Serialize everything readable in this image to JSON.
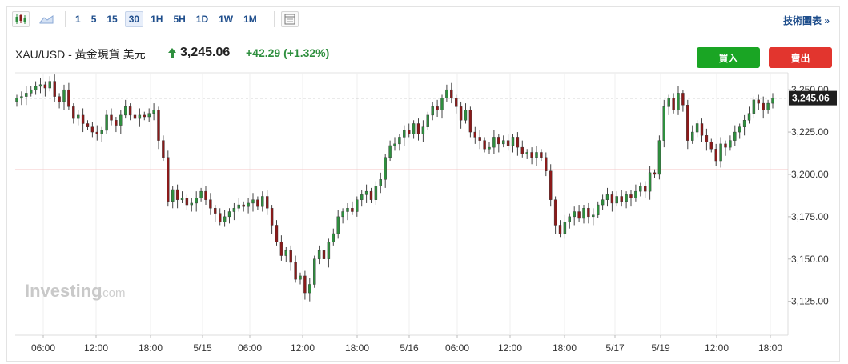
{
  "toolbar": {
    "timeframes": [
      "1",
      "5",
      "15",
      "30",
      "1H",
      "5H",
      "1D",
      "1W",
      "1M"
    ],
    "active_timeframe": "30",
    "tech_chart_label": "技術圖表 »",
    "icons": [
      "candlestick-icon",
      "area-chart-icon",
      "chart-settings-icon"
    ]
  },
  "header": {
    "title": "XAU/USD - 黃金現貨 美元",
    "price": "3,245.06",
    "change": "+42.29 (+1.32%)",
    "direction": "up",
    "buy_label": "買入",
    "sell_label": "賣出"
  },
  "watermark": {
    "brand": "Investing",
    "suffix": ".com"
  },
  "colors": {
    "up": "#2e8f3e",
    "down": "#8b1a1a",
    "buy": "#1aa524",
    "sell": "#e2352e",
    "price_tag": "#1f1f1f",
    "reference_line": "#f3b3b3"
  },
  "chart_data": {
    "type": "candlestick",
    "title": "",
    "xlabel": "",
    "ylabel": "",
    "ylim": [
      3105,
      3260
    ],
    "y_ticks": [
      "3,250.00",
      "3,225.00",
      "3,200.00",
      "3,175.00",
      "3,150.00",
      "3,125.00"
    ],
    "y_tick_values": [
      3250,
      3225,
      3200,
      3175,
      3150,
      3125
    ],
    "x_ticks": [
      "06:00",
      "12:00",
      "18:00",
      "5/15",
      "06:00",
      "12:00",
      "18:00",
      "5/16",
      "06:00",
      "12:00",
      "18:00",
      "5/17",
      "5/19",
      "12:00",
      "18:00"
    ],
    "current_price": 3245.06,
    "current_price_label": "3,245.06",
    "reference_price": 3202.77,
    "grid": "vertical",
    "series": [
      {
        "close": [
          3245,
          3246,
          3248,
          3250,
          3252,
          3253,
          3251,
          3255,
          3246,
          3243,
          3250,
          3240,
          3233,
          3235,
          3230,
          3228,
          3225,
          3224,
          3226,
          3235,
          3232,
          3229,
          3235,
          3240,
          3235,
          3233,
          3235,
          3234,
          3236,
          3238,
          3220,
          3210,
          3184,
          3191,
          3185,
          3186,
          3182,
          3183,
          3186,
          3190,
          3185,
          3180,
          3177,
          3172,
          3175,
          3178,
          3180,
          3182,
          3181,
          3183,
          3185,
          3181,
          3187,
          3180,
          3170,
          3160,
          3152,
          3155,
          3148,
          3138,
          3140,
          3130,
          3135,
          3150,
          3155,
          3150,
          3160,
          3165,
          3175,
          3178,
          3180,
          3178,
          3185,
          3188,
          3190,
          3185,
          3193,
          3197,
          3210,
          3217,
          3218,
          3222,
          3226,
          3224,
          3230,
          3224,
          3228,
          3235,
          3240,
          3238,
          3245,
          3250,
          3245,
          3240,
          3232,
          3238,
          3225,
          3222,
          3220,
          3215,
          3216,
          3222,
          3218,
          3220,
          3217,
          3222,
          3216,
          3212,
          3213,
          3210,
          3213,
          3210,
          3202,
          3185,
          3170,
          3165,
          3172,
          3175,
          3178,
          3174,
          3180,
          3175,
          3176,
          3182,
          3185,
          3188,
          3183,
          3187,
          3184,
          3188,
          3186,
          3190,
          3193,
          3190,
          3201,
          3200,
          3220,
          3240,
          3245,
          3238,
          3248,
          3241,
          3220,
          3225,
          3230,
          3223,
          3219,
          3215,
          3208,
          3218,
          3216,
          3220,
          3225,
          3228,
          3232,
          3236,
          3244,
          3242,
          3238,
          3242,
          3245
        ],
        "open": [
          3243,
          3245,
          3246,
          3248,
          3250,
          3252,
          3253,
          3251,
          3255,
          3246,
          3243,
          3250,
          3240,
          3233,
          3235,
          3230,
          3228,
          3225,
          3224,
          3226,
          3235,
          3232,
          3229,
          3235,
          3240,
          3235,
          3233,
          3235,
          3234,
          3236,
          3238,
          3220,
          3210,
          3184,
          3191,
          3185,
          3186,
          3182,
          3183,
          3186,
          3190,
          3185,
          3180,
          3177,
          3172,
          3175,
          3178,
          3180,
          3182,
          3181,
          3183,
          3185,
          3181,
          3187,
          3180,
          3170,
          3160,
          3152,
          3155,
          3148,
          3138,
          3140,
          3130,
          3135,
          3150,
          3155,
          3150,
          3160,
          3165,
          3175,
          3178,
          3180,
          3178,
          3185,
          3188,
          3190,
          3185,
          3193,
          3197,
          3210,
          3217,
          3218,
          3222,
          3226,
          3224,
          3230,
          3224,
          3228,
          3235,
          3240,
          3238,
          3245,
          3250,
          3245,
          3240,
          3232,
          3238,
          3225,
          3222,
          3220,
          3215,
          3216,
          3222,
          3218,
          3220,
          3217,
          3222,
          3216,
          3212,
          3213,
          3210,
          3213,
          3210,
          3202,
          3185,
          3170,
          3165,
          3172,
          3175,
          3178,
          3174,
          3180,
          3175,
          3176,
          3182,
          3185,
          3188,
          3183,
          3187,
          3184,
          3188,
          3186,
          3190,
          3193,
          3190,
          3201,
          3200,
          3220,
          3240,
          3245,
          3238,
          3248,
          3241,
          3220,
          3225,
          3230,
          3223,
          3219,
          3215,
          3208,
          3218,
          3216,
          3220,
          3225,
          3228,
          3232,
          3236,
          3244,
          3242,
          3238,
          3242
        ]
      }
    ]
  }
}
